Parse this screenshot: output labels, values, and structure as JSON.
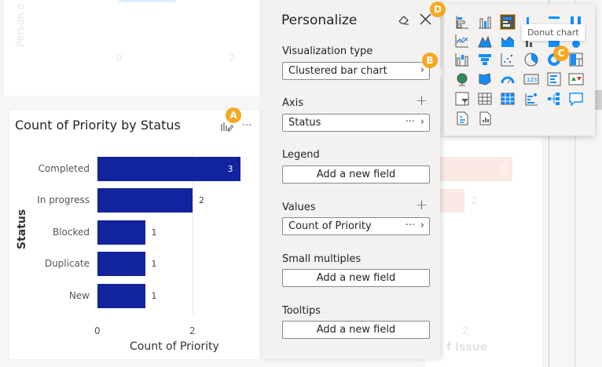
{
  "background": {
    "top_chart": {
      "ylabel": "Person o",
      "ticks": [
        "0",
        "2"
      ]
    },
    "right_chart": {
      "values": [
        "3",
        "2"
      ],
      "tick": "2",
      "xlabel": "f Issue"
    }
  },
  "chart": {
    "title": "Count of Priority by Status",
    "ylabel": "Status",
    "xlabel": "Count of Priority",
    "ticks": [
      "0",
      "2"
    ]
  },
  "chart_data": {
    "type": "bar",
    "title": "Count of Priority by Status",
    "xlabel": "Count of Priority",
    "ylabel": "Status",
    "categories": [
      "Completed",
      "In progress",
      "Blocked",
      "Duplicate",
      "New"
    ],
    "values": [
      3,
      2,
      1,
      1,
      1
    ],
    "value_labels": [
      "3",
      "2",
      "1",
      "1",
      "1"
    ],
    "xlim": [
      0,
      3
    ],
    "color": "#12239e"
  },
  "badges": {
    "a": "A",
    "b": "B",
    "c": "C",
    "d": "D"
  },
  "pane": {
    "title": "Personalize",
    "viz_label": "Visualization type",
    "viz_value": "Clustered bar chart",
    "axis_label": "Axis",
    "axis_value": "Status",
    "dots": "···",
    "legend_label": "Legend",
    "legend_value": "Add a new field",
    "values_label": "Values",
    "values_value": "Count of Priority",
    "small_label": "Small multiples",
    "small_value": "Add a new field",
    "tooltips_label": "Tooltips",
    "tooltips_value": "Add a new field"
  },
  "picker": {
    "tooltip": "Donut chart",
    "selected": "clustered-bar-chart",
    "accent": "#f7a820"
  }
}
